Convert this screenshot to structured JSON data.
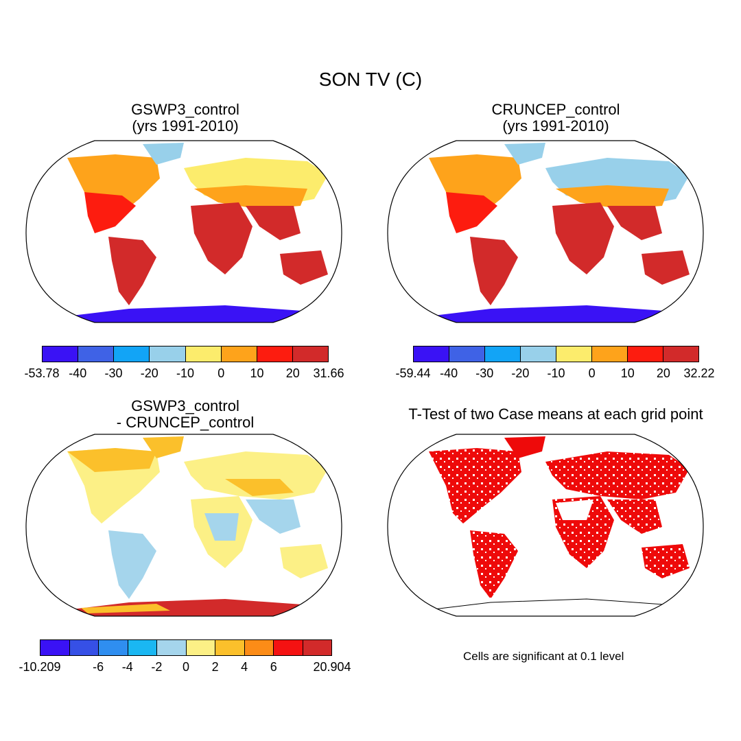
{
  "figure": {
    "title": "SON TV (C)"
  },
  "panels": [
    {
      "title_line1": "GSWP3_control",
      "title_line2": "(yrs 1991-2010)",
      "colorbar": {
        "colors": [
          "#3a12f5",
          "#3f62e6",
          "#12a4f6",
          "#98d0ea",
          "#fcec6c",
          "#fea31b",
          "#fd1c0f",
          "#d22a2a"
        ],
        "ticks": [
          "-53.78",
          "-40",
          "-30",
          "-20",
          "-10",
          "0",
          "10",
          "20",
          "31.66"
        ]
      }
    },
    {
      "title_line1": "CRUNCEP_control",
      "title_line2": "(yrs 1991-2010)",
      "colorbar": {
        "colors": [
          "#3a12f5",
          "#3f62e6",
          "#12a4f6",
          "#98d0ea",
          "#fcec6c",
          "#fea31b",
          "#fd1c0f",
          "#d22a2a"
        ],
        "ticks": [
          "-59.44",
          "-40",
          "-30",
          "-20",
          "-10",
          "0",
          "10",
          "20",
          "32.22"
        ]
      }
    },
    {
      "title_line1": "GSWP3_control",
      "title_line2": "- CRUNCEP_control",
      "colorbar": {
        "colors": [
          "#3a12f5",
          "#3650e6",
          "#2f8ef0",
          "#1ab7f2",
          "#a5d5ec",
          "#fcf086",
          "#fbc02b",
          "#fc8c17",
          "#f41212",
          "#d22a2a"
        ],
        "ticks": [
          "-10.209",
          "",
          "-6",
          "-4",
          "-2",
          "0",
          "2",
          "4",
          "6",
          "",
          "20.904"
        ]
      }
    },
    {
      "title_line1": "T-Test of two Case means at each grid point",
      "note": "Cells are significant at 0.1 level"
    }
  ]
}
